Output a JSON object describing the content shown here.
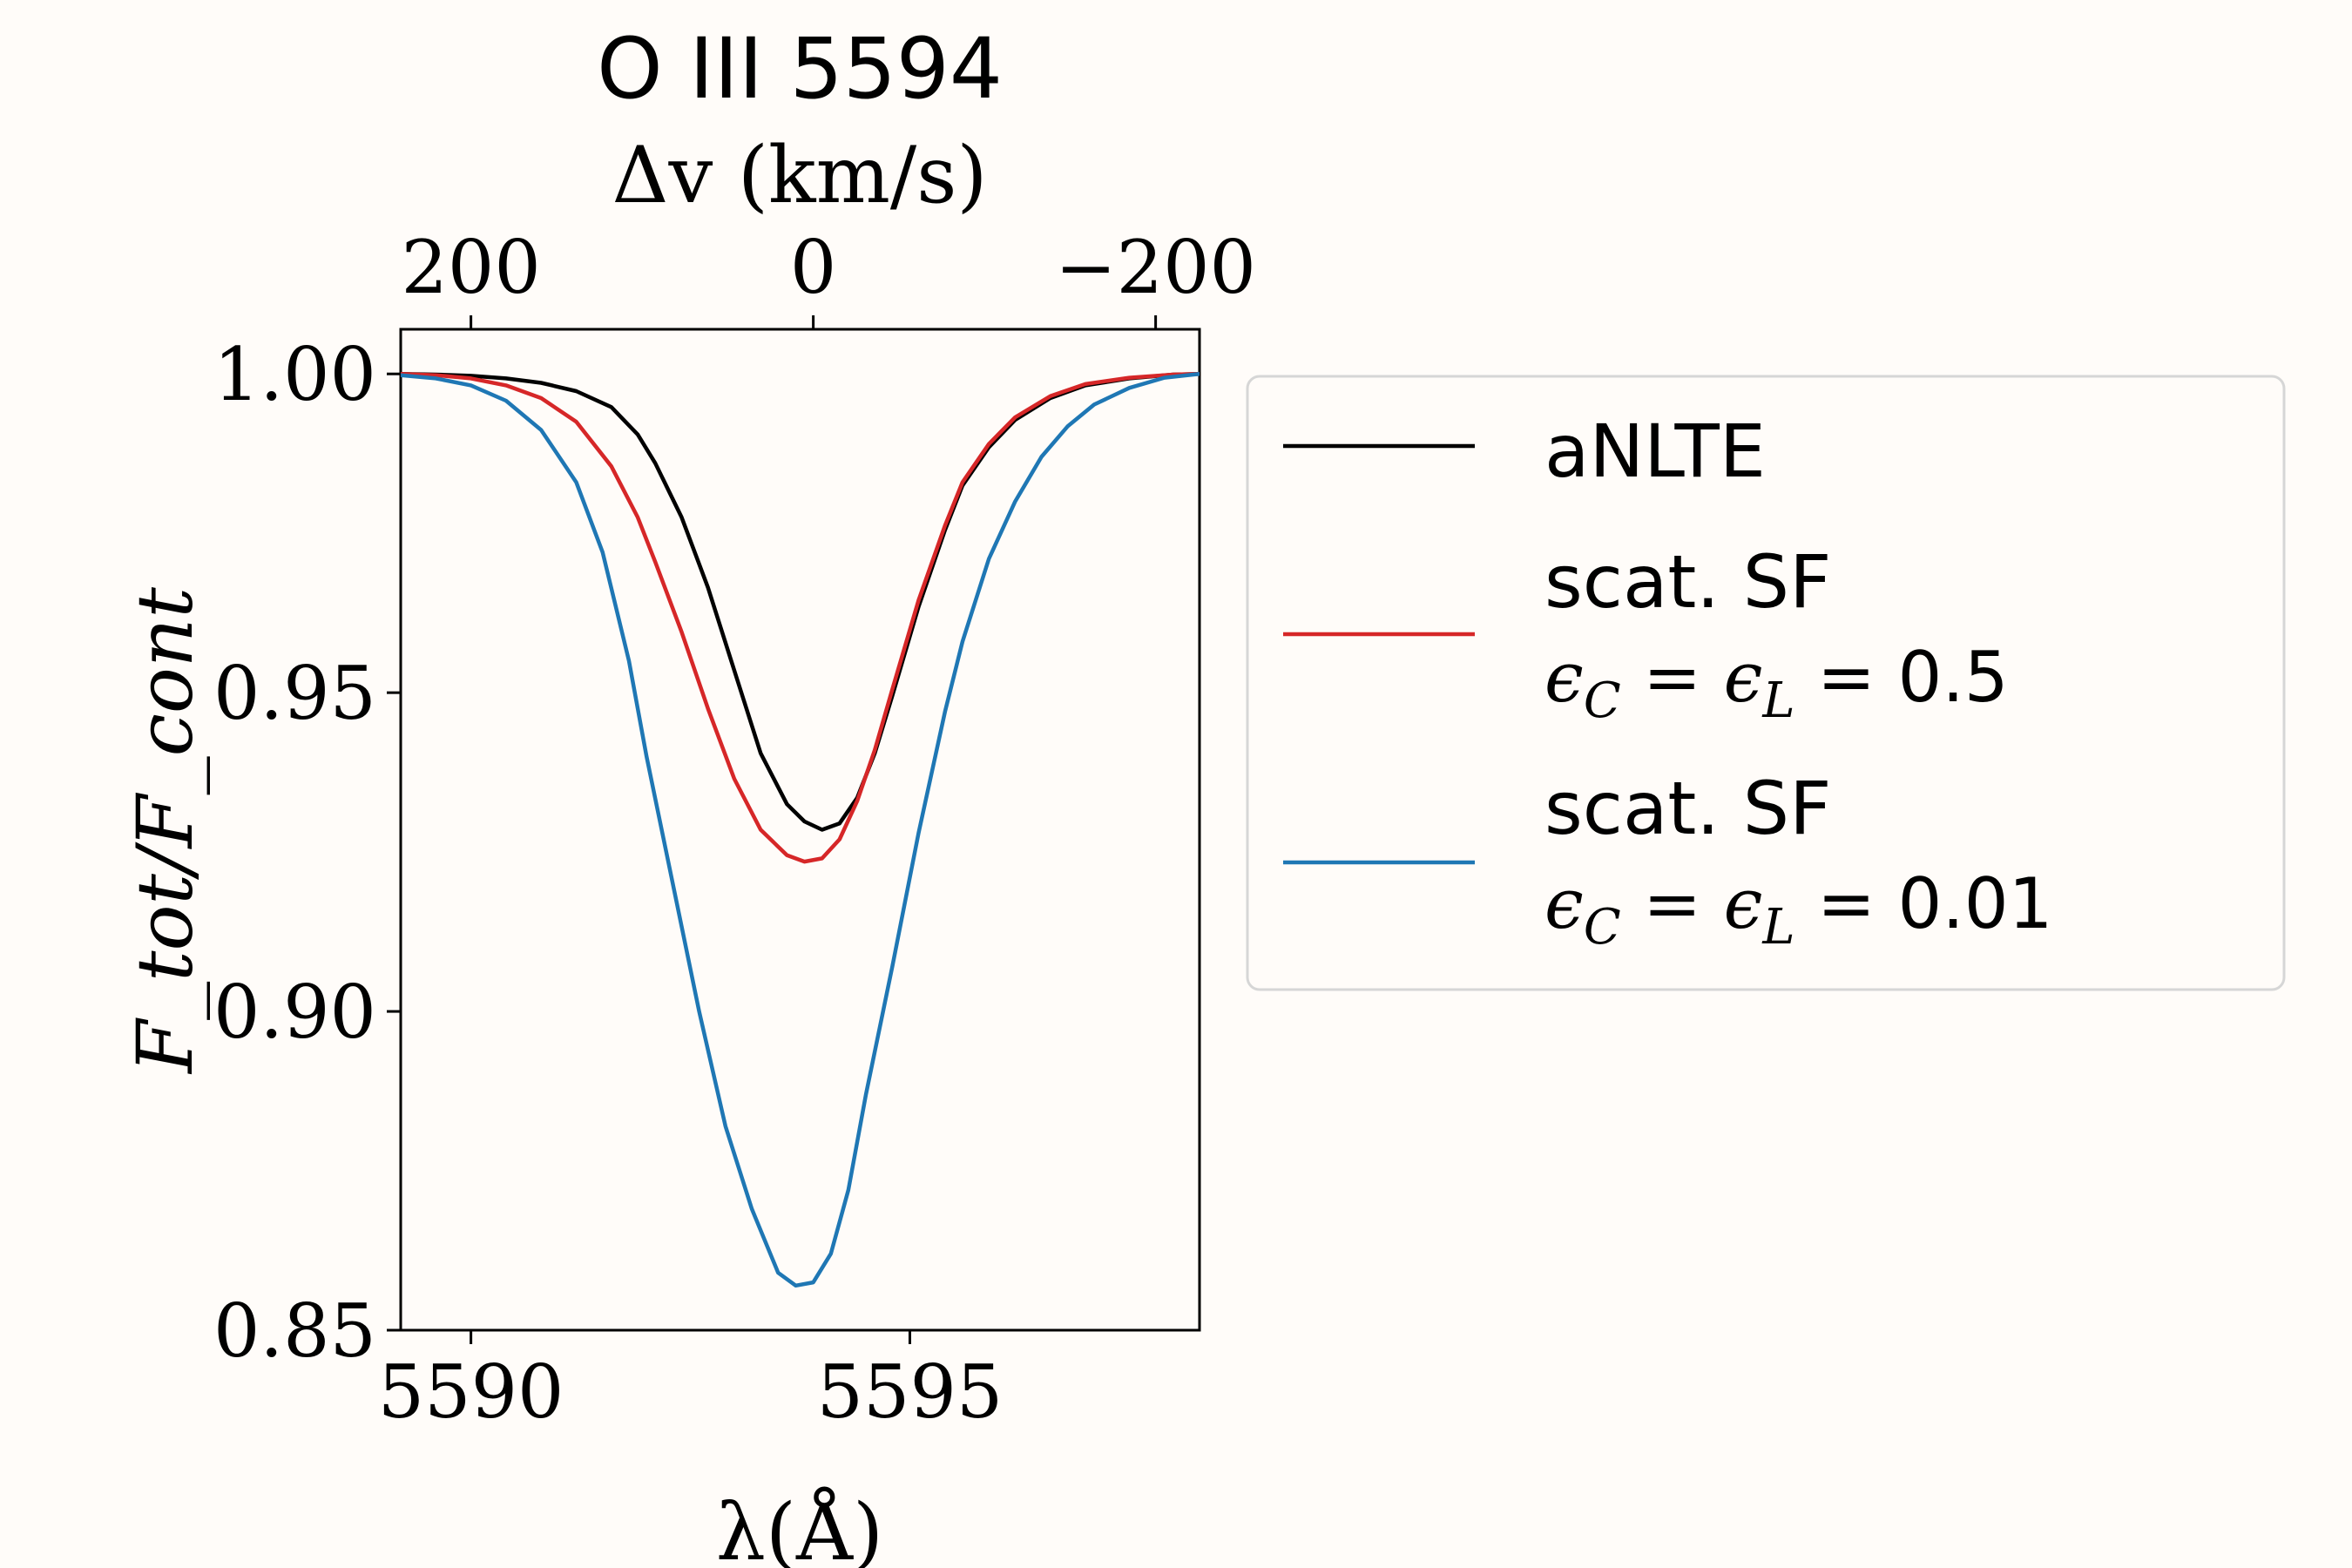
{
  "chart_data": {
    "type": "line",
    "title": "O III 5594",
    "xlabel": "λ(Å)",
    "ylabel": "F_tot/F_cont",
    "top_xlabel": "Δv (km/s)",
    "xlim": [
      5589.2,
      5598.3
    ],
    "ylim": [
      0.85,
      1.007
    ],
    "xticks": [
      5590,
      5595
    ],
    "xtick_labels": [
      "5590",
      "5595"
    ],
    "yticks": [
      0.85,
      0.9,
      0.95,
      1.0
    ],
    "ytick_labels": [
      "0.85",
      "0.90",
      "0.95",
      "1.00"
    ],
    "top_xticks_at_wavelength": [
      5590.0,
      5593.9,
      5597.8
    ],
    "top_xtick_labels": [
      "200",
      "0",
      "−200"
    ],
    "grid": false,
    "legend_position": "right-outside",
    "series": [
      {
        "name": "aNLTE",
        "color": "#000000",
        "x": [
          5589.2,
          5589.6,
          5590.0,
          5590.4,
          5590.8,
          5591.2,
          5591.6,
          5591.9,
          5592.1,
          5592.4,
          5592.7,
          5593.0,
          5593.3,
          5593.6,
          5593.8,
          5594.0,
          5594.2,
          5594.4,
          5594.6,
          5594.8,
          5595.1,
          5595.4,
          5595.6,
          5595.9,
          5596.2,
          5596.6,
          5597.0,
          5597.5,
          5598.0,
          5598.3
        ],
        "y": [
          1.0,
          0.9999,
          0.9997,
          0.9993,
          0.9986,
          0.9973,
          0.9948,
          0.9905,
          0.986,
          0.9775,
          0.9665,
          0.9535,
          0.9405,
          0.9325,
          0.9298,
          0.9285,
          0.9295,
          0.9335,
          0.9405,
          0.9495,
          0.9635,
          0.9755,
          0.9825,
          0.9885,
          0.9928,
          0.9962,
          0.9982,
          0.9993,
          0.9999,
          1.0
        ]
      },
      {
        "name": "scat. SF ϵC = ϵL = 0.5",
        "color": "#d62728",
        "x": [
          5589.2,
          5589.6,
          5590.0,
          5590.4,
          5590.8,
          5591.2,
          5591.6,
          5591.9,
          5592.1,
          5592.4,
          5592.7,
          5593.0,
          5593.3,
          5593.6,
          5593.8,
          5594.0,
          5594.2,
          5594.4,
          5594.6,
          5594.8,
          5595.1,
          5595.4,
          5595.6,
          5595.9,
          5596.2,
          5596.6,
          5597.0,
          5597.5,
          5598.0,
          5598.3
        ],
        "y": [
          1.0,
          0.9998,
          0.9993,
          0.9982,
          0.9962,
          0.9925,
          0.9855,
          0.9775,
          0.9705,
          0.9595,
          0.9475,
          0.9365,
          0.9285,
          0.9245,
          0.9235,
          0.924,
          0.927,
          0.933,
          0.941,
          0.9505,
          0.9645,
          0.9762,
          0.983,
          0.989,
          0.9932,
          0.9965,
          0.9984,
          0.9994,
          0.9999,
          1.0
        ]
      },
      {
        "name": "scat. SF ϵC = ϵL = 0.01",
        "color": "#1f77b4",
        "x": [
          5589.2,
          5589.6,
          5590.0,
          5590.4,
          5590.8,
          5591.2,
          5591.5,
          5591.8,
          5592.0,
          5592.3,
          5592.6,
          5592.9,
          5593.2,
          5593.5,
          5593.7,
          5593.9,
          5594.1,
          5594.3,
          5594.5,
          5594.8,
          5595.1,
          5595.4,
          5595.6,
          5595.9,
          5596.2,
          5596.5,
          5596.8,
          5597.1,
          5597.5,
          5597.9,
          5598.3
        ],
        "y": [
          0.9998,
          0.9993,
          0.9982,
          0.9958,
          0.9912,
          0.983,
          0.972,
          0.955,
          0.94,
          0.92,
          0.9,
          0.882,
          0.869,
          0.859,
          0.857,
          0.8575,
          0.862,
          0.872,
          0.887,
          0.907,
          0.928,
          0.947,
          0.958,
          0.971,
          0.98,
          0.987,
          0.9918,
          0.9952,
          0.9978,
          0.9994,
          1.0
        ]
      }
    ]
  },
  "legend": {
    "entries": [
      {
        "line1": "aNLTE",
        "line2": "",
        "color": "#000000"
      },
      {
        "line1": "scat.  SF",
        "eps": "ϵ",
        "subC": "C",
        "mid": " = ϵ",
        "subL": "L",
        "value": " = 0.5",
        "color": "#d62728"
      },
      {
        "line1": "scat.  SF",
        "eps": "ϵ",
        "subC": "C",
        "mid": " = ϵ",
        "subL": "L",
        "value": " = 0.01",
        "color": "#1f77b4"
      }
    ]
  }
}
